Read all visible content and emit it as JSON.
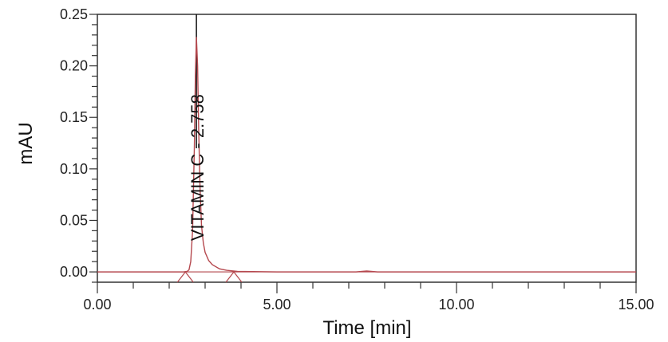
{
  "chart_data": {
    "type": "line",
    "title": "",
    "xlabel": "Time [min]",
    "ylabel": "mAU",
    "xlim": [
      0,
      15
    ],
    "ylim": [
      -0.01,
      0.25
    ],
    "x_ticks": [
      "0.00",
      "5.00",
      "10.00",
      "15.00"
    ],
    "y_ticks": [
      "0.00",
      "0.05",
      "0.10",
      "0.15",
      "0.20",
      "0.25"
    ],
    "grid": false,
    "series": [
      {
        "color": "#b5484e",
        "x": [
          0,
          2.4,
          2.5,
          2.55,
          2.6,
          2.65,
          2.7,
          2.73,
          2.758,
          2.79,
          2.82,
          2.86,
          2.9,
          2.95,
          3.0,
          3.1,
          3.2,
          3.4,
          3.6,
          3.9,
          5,
          7.2,
          7.5,
          7.8,
          10,
          15
        ],
        "y": [
          0,
          0,
          0.0005,
          0.002,
          0.01,
          0.04,
          0.12,
          0.19,
          0.228,
          0.2,
          0.14,
          0.08,
          0.045,
          0.028,
          0.019,
          0.011,
          0.007,
          0.003,
          0.0015,
          0.0005,
          0,
          0,
          0.0008,
          0,
          0,
          0
        ]
      }
    ],
    "peak_marker": {
      "time": 2.758,
      "color": "#111111"
    },
    "baseline_markers": [
      2.45,
      3.8
    ],
    "annotations": [
      {
        "text": "VITAMIN C - 2.758",
        "x": 2.758
      }
    ]
  }
}
